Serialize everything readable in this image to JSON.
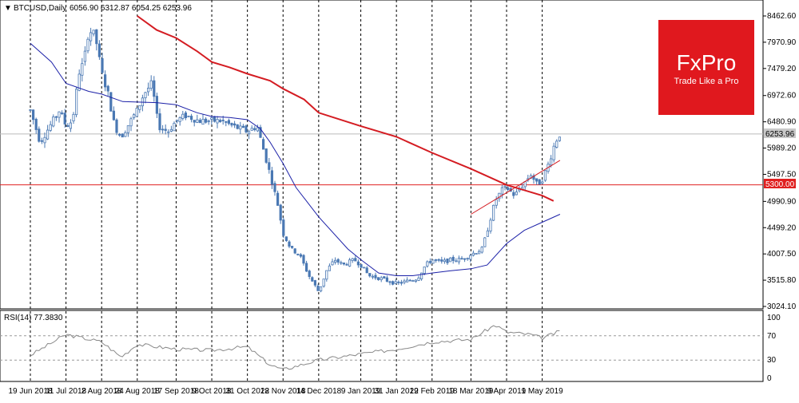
{
  "header": {
    "arrow": "▼",
    "symbol": "BTCUSD,Daily",
    "ohlc": "6056.90 6312.87 6054.25 6253.96"
  },
  "logo": {
    "brand": "FxPro",
    "tagline": "Trade Like a Pro",
    "bg_color": "#e0181e"
  },
  "price_badges": {
    "last": "6253.96",
    "level": "5300.00"
  },
  "rsi": {
    "label": "RSI(14) 77.3830",
    "value": 77.383,
    "ticks": [
      "100",
      "70",
      "30",
      "0"
    ]
  },
  "colors": {
    "candle": "#4a78b3",
    "ma_fast": "#1c21a8",
    "ma_slow": "#d41c22",
    "level_line": "#e02020",
    "grid": "#000000",
    "rsi_line": "#888888"
  },
  "chart_data": {
    "type": "candlestick",
    "title": "BTCUSD,Daily",
    "y_ticks": [
      "8462.60",
      "7970.90",
      "7479.20",
      "6972.60",
      "6480.90",
      "5989.20",
      "5497.50",
      "4990.90",
      "4499.20",
      "4007.50",
      "3515.80",
      "3024.10"
    ],
    "ylim": [
      3024.1,
      8462.6
    ],
    "x_ticks": [
      "19 Jun 2018",
      "11 Jul 2018",
      "2 Aug 2018",
      "24 Aug 2018",
      "17 Sep 2018",
      "9 Oct 2018",
      "31 Oct 2018",
      "22 Nov 2018",
      "14 Dec 2018",
      "9 Jan 2019",
      "31 Jan 2019",
      "22 Feb 2019",
      "18 Mar 2019",
      "9 Apr 2019",
      "1 May 2019"
    ],
    "grid": true,
    "horizontal_level": 5300.0,
    "last_price": 6253.96,
    "close_path": [
      [
        "19 Jun 2018",
        6700
      ],
      [
        "25 Jun 2018",
        6100
      ],
      [
        "1 Jul 2018",
        6400
      ],
      [
        "7 Jul 2018",
        6700
      ],
      [
        "11 Jul 2018",
        6400
      ],
      [
        "15 Jul 2018",
        6500
      ],
      [
        "19 Jul 2018",
        7400
      ],
      [
        "22 Jul 2018",
        7600
      ],
      [
        "25 Jul 2018",
        8200
      ],
      [
        "29 Jul 2018",
        8100
      ],
      [
        "2 Aug 2018",
        7400
      ],
      [
        "6 Aug 2018",
        7000
      ],
      [
        "10 Aug 2018",
        6400
      ],
      [
        "14 Aug 2018",
        6200
      ],
      [
        "18 Aug 2018",
        6400
      ],
      [
        "24 Aug 2018",
        6700
      ],
      [
        "28 Aug 2018",
        7000
      ],
      [
        "2 Sep 2018",
        7200
      ],
      [
        "6 Sep 2018",
        6400
      ],
      [
        "12 Sep 2018",
        6300
      ],
      [
        "17 Sep 2018",
        6500
      ],
      [
        "23 Sep 2018",
        6600
      ],
      [
        "1 Oct 2018",
        6500
      ],
      [
        "9 Oct 2018",
        6500
      ],
      [
        "15 Oct 2018",
        6500
      ],
      [
        "22 Oct 2018",
        6400
      ],
      [
        "31 Oct 2018",
        6300
      ],
      [
        "6 Nov 2018",
        6400
      ],
      [
        "14 Nov 2018",
        5500
      ],
      [
        "19 Nov 2018",
        4900
      ],
      [
        "22 Nov 2018",
        4400
      ],
      [
        "27 Nov 2018",
        4100
      ],
      [
        "2 Dec 2018",
        4000
      ],
      [
        "8 Dec 2018",
        3600
      ],
      [
        "14 Dec 2018",
        3300
      ],
      [
        "19 Dec 2018",
        3700
      ],
      [
        "24 Dec 2018",
        3900
      ],
      [
        "29 Dec 2018",
        3800
      ],
      [
        "5 Jan 2019",
        3900
      ],
      [
        "9 Jan 2019",
        3800
      ],
      [
        "14 Jan 2019",
        3600
      ],
      [
        "21 Jan 2019",
        3550
      ],
      [
        "26 Jan 2019",
        3500
      ],
      [
        "31 Jan 2019",
        3450
      ],
      [
        "7 Feb 2019",
        3500
      ],
      [
        "13 Feb 2019",
        3550
      ],
      [
        "18 Feb 2019",
        3800
      ],
      [
        "22 Feb 2019",
        3900
      ],
      [
        "28 Feb 2019",
        3850
      ],
      [
        "6 Mar 2019",
        3900
      ],
      [
        "12 Mar 2019",
        3900
      ],
      [
        "18 Mar 2019",
        4000
      ],
      [
        "25 Mar 2019",
        4100
      ],
      [
        "2 Apr 2019",
        5000
      ],
      [
        "6 Apr 2019",
        5200
      ],
      [
        "9 Apr 2019",
        5250
      ],
      [
        "14 Apr 2019",
        5100
      ],
      [
        "19 Apr 2019",
        5300
      ],
      [
        "24 Apr 2019",
        5500
      ],
      [
        "28 Apr 2019",
        5300
      ],
      [
        "1 May 2019",
        5400
      ],
      [
        "5 May 2019",
        5700
      ],
      [
        "9 May 2019",
        6100
      ],
      [
        "12 May 2019",
        6253.96
      ]
    ],
    "ma_fast": [
      [
        "19 Jun 2018",
        7950
      ],
      [
        "2 Jul 2018",
        7600
      ],
      [
        "11 Jul 2018",
        7200
      ],
      [
        "25 Jul 2018",
        7050
      ],
      [
        "2 Aug 2018",
        7000
      ],
      [
        "15 Aug 2018",
        6860
      ],
      [
        "24 Aug 2018",
        6850
      ],
      [
        "5 Sep 2018",
        6840
      ],
      [
        "17 Sep 2018",
        6800
      ],
      [
        "30 Sep 2018",
        6650
      ],
      [
        "9 Oct 2018",
        6580
      ],
      [
        "20 Oct 2018",
        6560
      ],
      [
        "31 Oct 2018",
        6520
      ],
      [
        "8 Nov 2018",
        6350
      ],
      [
        "14 Nov 2018",
        6100
      ],
      [
        "22 Nov 2018",
        5700
      ],
      [
        "30 Nov 2018",
        5250
      ],
      [
        "14 Dec 2018",
        4700
      ],
      [
        "1 Jan 2019",
        4100
      ],
      [
        "9 Jan 2019",
        3900
      ],
      [
        "20 Jan 2019",
        3650
      ],
      [
        "31 Jan 2019",
        3600
      ],
      [
        "10 Feb 2019",
        3600
      ],
      [
        "22 Feb 2019",
        3650
      ],
      [
        "5 Mar 2019",
        3690
      ],
      [
        "18 Mar 2019",
        3730
      ],
      [
        "28 Mar 2019",
        3800
      ],
      [
        "9 Apr 2019",
        4200
      ],
      [
        "20 Apr 2019",
        4450
      ],
      [
        "1 May 2019",
        4600
      ],
      [
        "12 May 2019",
        4750
      ]
    ],
    "ma_slow": [
      [
        "24 Aug 2018",
        8462.6
      ],
      [
        "5 Sep 2018",
        8200
      ],
      [
        "17 Sep 2018",
        8050
      ],
      [
        "30 Sep 2018",
        7800
      ],
      [
        "9 Oct 2018",
        7600
      ],
      [
        "20 Oct 2018",
        7500
      ],
      [
        "31 Oct 2018",
        7380
      ],
      [
        "14 Nov 2018",
        7250
      ],
      [
        "22 Nov 2018",
        7100
      ],
      [
        "5 Dec 2018",
        6900
      ],
      [
        "14 Dec 2018",
        6650
      ],
      [
        "9 Jan 2019",
        6400
      ],
      [
        "31 Jan 2019",
        6200
      ],
      [
        "22 Feb 2019",
        5900
      ],
      [
        "18 Mar 2019",
        5600
      ],
      [
        "9 Apr 2019",
        5300
      ],
      [
        "1 May 2019",
        5100
      ],
      [
        "8 May 2019",
        5000
      ]
    ],
    "trendline": [
      [
        "18 Mar 2019",
        4750
      ],
      [
        "12 May 2019",
        5760
      ]
    ],
    "rsi_values": [
      [
        "19 Jun 2018",
        38
      ],
      [
        "11 Jul 2018",
        72
      ],
      [
        "2 Aug 2018",
        60
      ],
      [
        "14 Aug 2018",
        35
      ],
      [
        "24 Aug 2018",
        56
      ],
      [
        "17 Sep 2018",
        48
      ],
      [
        "9 Oct 2018",
        46
      ],
      [
        "31 Oct 2018",
        52
      ],
      [
        "14 Nov 2018",
        22
      ],
      [
        "22 Nov 2018",
        14
      ],
      [
        "14 Dec 2018",
        30
      ],
      [
        "9 Jan 2019",
        40
      ],
      [
        "31 Jan 2019",
        48
      ],
      [
        "22 Feb 2019",
        60
      ],
      [
        "18 Mar 2019",
        64
      ],
      [
        "2 Apr 2019",
        88
      ],
      [
        "9 Apr 2019",
        76
      ],
      [
        "24 Apr 2019",
        72
      ],
      [
        "1 May 2019",
        66
      ],
      [
        "12 May 2019",
        77.383
      ]
    ]
  }
}
